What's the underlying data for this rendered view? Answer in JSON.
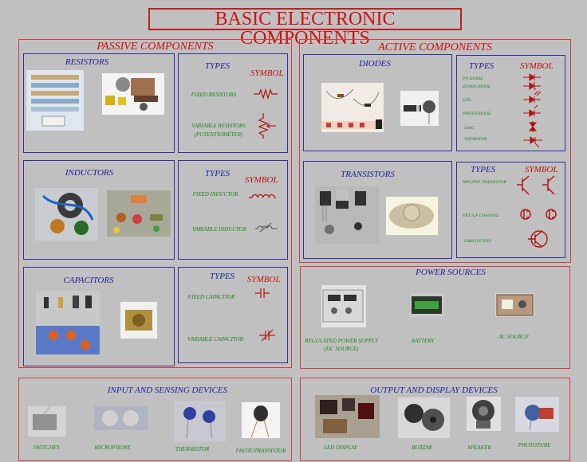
{
  "title": "BASIC ELECTRONIC COMPONENTS",
  "passive": {
    "title": "PASSIVE COMPONENTS",
    "resistors": {
      "title": "RESISTORS",
      "types": "TYPES",
      "symbol": "SYMBOL",
      "fixed": "FIXED RESISTORS",
      "variable": "VARIABLE RESISTORS",
      "variable_sub": "(POTENTIOMETER)"
    },
    "inductors": {
      "title": "INDUCTORS",
      "types": "TYPES",
      "symbol": "SYMBOL",
      "fixed": "FIXED INDUCTOR",
      "variable": "VARIABLE INDUCTOR"
    },
    "capacitors": {
      "title": "CAPACITORS",
      "types": "TYPES",
      "symbol": "SYMBOL",
      "fixed": "FIXED CAPACITOR",
      "variable": "VARIABLE CAPACITOR"
    }
  },
  "active": {
    "title": "ACTIVE COMPONENTS",
    "diodes": {
      "title": "DIODES",
      "types": "TYPES",
      "symbol": "SYMBOL",
      "items": [
        "PN DIODE",
        "ZENER DIODE",
        "LED",
        "PHOTODIODE",
        "DIAC",
        "THYRISTOR"
      ]
    },
    "transistors": {
      "title": "TRANSISTORS",
      "types": "TYPES",
      "symbol": "SYMBOL",
      "items": [
        "NPN,PNP TRANSISTOR",
        "FET N,P CHANNEL",
        "DARLINGTON"
      ]
    }
  },
  "power": {
    "title": "POWER SOURCES",
    "regulated": "REGULATED POWER SUPPLY",
    "regulated_sub": "(DC SOURCE)",
    "battery": "BATTERY",
    "ac": "AC SOURCE"
  },
  "input": {
    "title": "INPUT AND SENSING DEVICES",
    "items": [
      "SWITCHES",
      "MICROPHONE",
      "THERMISTOR",
      "PHOTOTRANSISTOR"
    ]
  },
  "output": {
    "title": "OUTPUT AND DISPLAY DEVICES",
    "items": [
      "LED DISPLAY",
      "BUZZAR",
      "SPEAKER",
      "PHOTOTUBE"
    ]
  },
  "colors": {
    "background": "#c0c0c0",
    "title_red": "#d01010",
    "subtitle_blue": "#2020a0",
    "label_green": "#208020"
  }
}
